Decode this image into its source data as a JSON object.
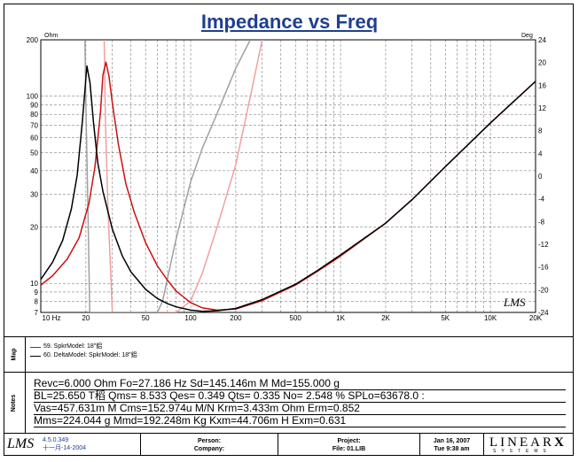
{
  "title": "Impedance vs Freq",
  "chart_data": {
    "type": "line",
    "title": "Impedance vs Freq",
    "x_scale": "log",
    "y_scale": "log",
    "xlim": [
      10,
      20000
    ],
    "ylim": [
      7,
      200
    ],
    "y2lim": [
      -24,
      24
    ],
    "ylabel_unit": "Ohm",
    "y2label_unit": "Deg",
    "x_ticks": [
      10,
      20,
      50,
      100,
      200,
      500,
      1000,
      2000,
      5000,
      10000,
      20000
    ],
    "x_tick_labels": [
      "10 Hz",
      "20",
      "50",
      "100",
      "200",
      "500",
      "1K",
      "2K",
      "5K",
      "10K",
      "20K"
    ],
    "y_ticks": [
      7,
      8,
      9,
      10,
      20,
      30,
      40,
      50,
      60,
      70,
      80,
      90,
      100,
      200
    ],
    "y_tick_labels": [
      "7",
      "8",
      "9",
      "10",
      "20",
      "30",
      "40",
      "50",
      "60",
      "70",
      "80",
      "90",
      "100",
      "200"
    ],
    "y2_ticks": [
      -24,
      -20,
      -16,
      -12,
      -8,
      -4,
      0,
      4,
      8,
      12,
      16,
      20,
      24
    ],
    "y2_tick_labels": [
      "-24",
      "-20",
      "-16",
      "-12",
      "-8",
      "-4",
      "0",
      "4",
      "8",
      "12",
      "16",
      "20",
      "24"
    ],
    "grid": true,
    "series": [
      {
        "name": "59. SpkrModel: 18\"鋁",
        "kind": "impedance",
        "color": "#cc1111",
        "x": [
          10,
          12,
          15,
          18,
          21,
          23,
          25,
          26,
          27.2,
          28.5,
          30,
          33,
          37,
          42,
          50,
          60,
          70,
          80,
          100,
          120,
          150,
          200,
          300,
          500,
          700,
          1000,
          2000,
          3000,
          5000,
          10000,
          20000
        ],
        "y": [
          9.8,
          11,
          13.5,
          17.5,
          27,
          42,
          82,
          130,
          152,
          128,
          92,
          55,
          34,
          24,
          16.5,
          12.4,
          10.4,
          9.1,
          7.9,
          7.4,
          7.2,
          7.3,
          8.1,
          9.8,
          11.6,
          14,
          21,
          28,
          42,
          72,
          120
        ]
      },
      {
        "name": "60. DeltaModel: SpkrModel: 18\"鋁",
        "kind": "impedance",
        "color": "#000000",
        "x": [
          10,
          12,
          14,
          16,
          17.5,
          19,
          20.3,
          21.3,
          22.5,
          24,
          26,
          30,
          35,
          40,
          50,
          60,
          70,
          80,
          100,
          120,
          150,
          200,
          300,
          500,
          700,
          1000,
          2000,
          3000,
          5000,
          10000,
          20000
        ],
        "y": [
          10.5,
          13,
          17,
          25,
          38,
          75,
          145,
          118,
          72,
          44,
          31,
          19.5,
          14,
          11.5,
          9.3,
          8.3,
          7.8,
          7.5,
          7.2,
          7.1,
          7.15,
          7.35,
          8.2,
          9.9,
          11.7,
          14.2,
          21,
          28,
          42,
          72,
          120
        ]
      },
      {
        "name": "59. SpkrModel: 18\"鋁 phase",
        "kind": "phase",
        "color": "#f0a0a0",
        "x": [
          26.5,
          27,
          28,
          30,
          40,
          50,
          60,
          80,
          100,
          120,
          150,
          200,
          250,
          300
        ],
        "y": [
          24,
          10,
          -5,
          -24,
          -24,
          -24,
          -24,
          -24,
          -22,
          -17,
          -9,
          2,
          14,
          24
        ]
      },
      {
        "name": "60. DeltaModel: SpkrModel: 18\"鋁 phase",
        "kind": "phase",
        "color": "#a0a0a0",
        "x": [
          19.7,
          20,
          20.6,
          21.2,
          30,
          50,
          60,
          65,
          70,
          80,
          100,
          120,
          150,
          200,
          250
        ],
        "y": [
          24,
          12,
          -5,
          -24,
          -24,
          -24,
          -24,
          -22,
          -18,
          -11,
          -1,
          5,
          11,
          19,
          24
        ]
      }
    ]
  },
  "legend": {
    "items": [
      {
        "label": "59. SpkrModel: 18\"鋁",
        "color": "#cc1111"
      },
      {
        "label": "60. DeltaModel: SpkrModel: 18\"鋁",
        "color": "#000000"
      }
    ]
  },
  "sections": {
    "map_label": "Map",
    "notes_label": "Notes"
  },
  "notes": [
    "Revc=6.000 Ohm  Fo=27.186 Hz  Sd=145.146m M    Md=155.000 g",
    "BL=25.650 T稻  Qms= 8.533  Qes= 0.349  Qts= 0.335  No= 2.548 %  SPLo=63678.0 :",
    "Vas=457.631m M     Cms=152.974u M/N  Krm=3.433m Ohm  Erm=0.852",
    "Mms=224.044 g   Mmd=192.248m Kg   Kxm=44.706m H   Exm=0.631"
  ],
  "watermark": "LMS",
  "footer": {
    "logo": "LMS",
    "version": "4.5.0.349",
    "version_date": "十一月-14-2004",
    "person_label": "Person:",
    "company_label": "Company:",
    "project_label": "Project:",
    "file_label": "File: 01.LIB",
    "date": "Jan 16, 2007",
    "time": "Tue  9:38 am",
    "brand": "LINEAR",
    "brand_x": "X",
    "brand_sub": "SYSTEMS"
  }
}
